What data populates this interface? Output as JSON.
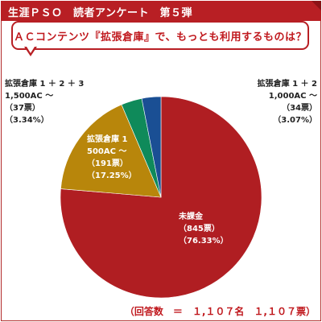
{
  "header": {
    "title": "生涯ＰＳＯ　読者アンケート　第５弾"
  },
  "question": "ＡＣコンテンツ『拡張倉庫』で、もっとも利用するものは？",
  "total": "（回答数　＝　１,１０７名　１,１０７票）",
  "colors": {
    "accent": "#b81f24"
  },
  "chart_data": {
    "type": "pie",
    "title": "",
    "slices": [
      {
        "name": "未課金",
        "votes": 845,
        "percent": 76.33,
        "color": "#b01e22",
        "label_lines": [
          "未課金",
          "（845票）",
          "（76.33%）"
        ],
        "label_color": "#ffffff"
      },
      {
        "name": "拡張倉庫１",
        "votes": 191,
        "percent": 17.25,
        "color": "#b8860b",
        "label_lines": [
          "拡張倉庫 1",
          "500AC ～",
          "（191票）",
          "（17.25%）"
        ],
        "label_color": "#ffffff"
      },
      {
        "name": "拡張倉庫１＋２＋３",
        "votes": 37,
        "percent": 3.34,
        "color": "#0f8a5a",
        "label_lines": [
          "拡張倉庫 1 ＋ 2 ＋ 3",
          "1,500AC ～",
          "（37票）",
          "（3.34%）"
        ],
        "label_color": "#222222"
      },
      {
        "name": "拡張倉庫１＋２",
        "votes": 34,
        "percent": 3.07,
        "color": "#1a4f94",
        "label_lines": [
          "拡張倉庫 1 ＋ 2",
          "1,000AC ～",
          "（34票）",
          "（3.07%）"
        ],
        "label_color": "#222222"
      }
    ]
  }
}
